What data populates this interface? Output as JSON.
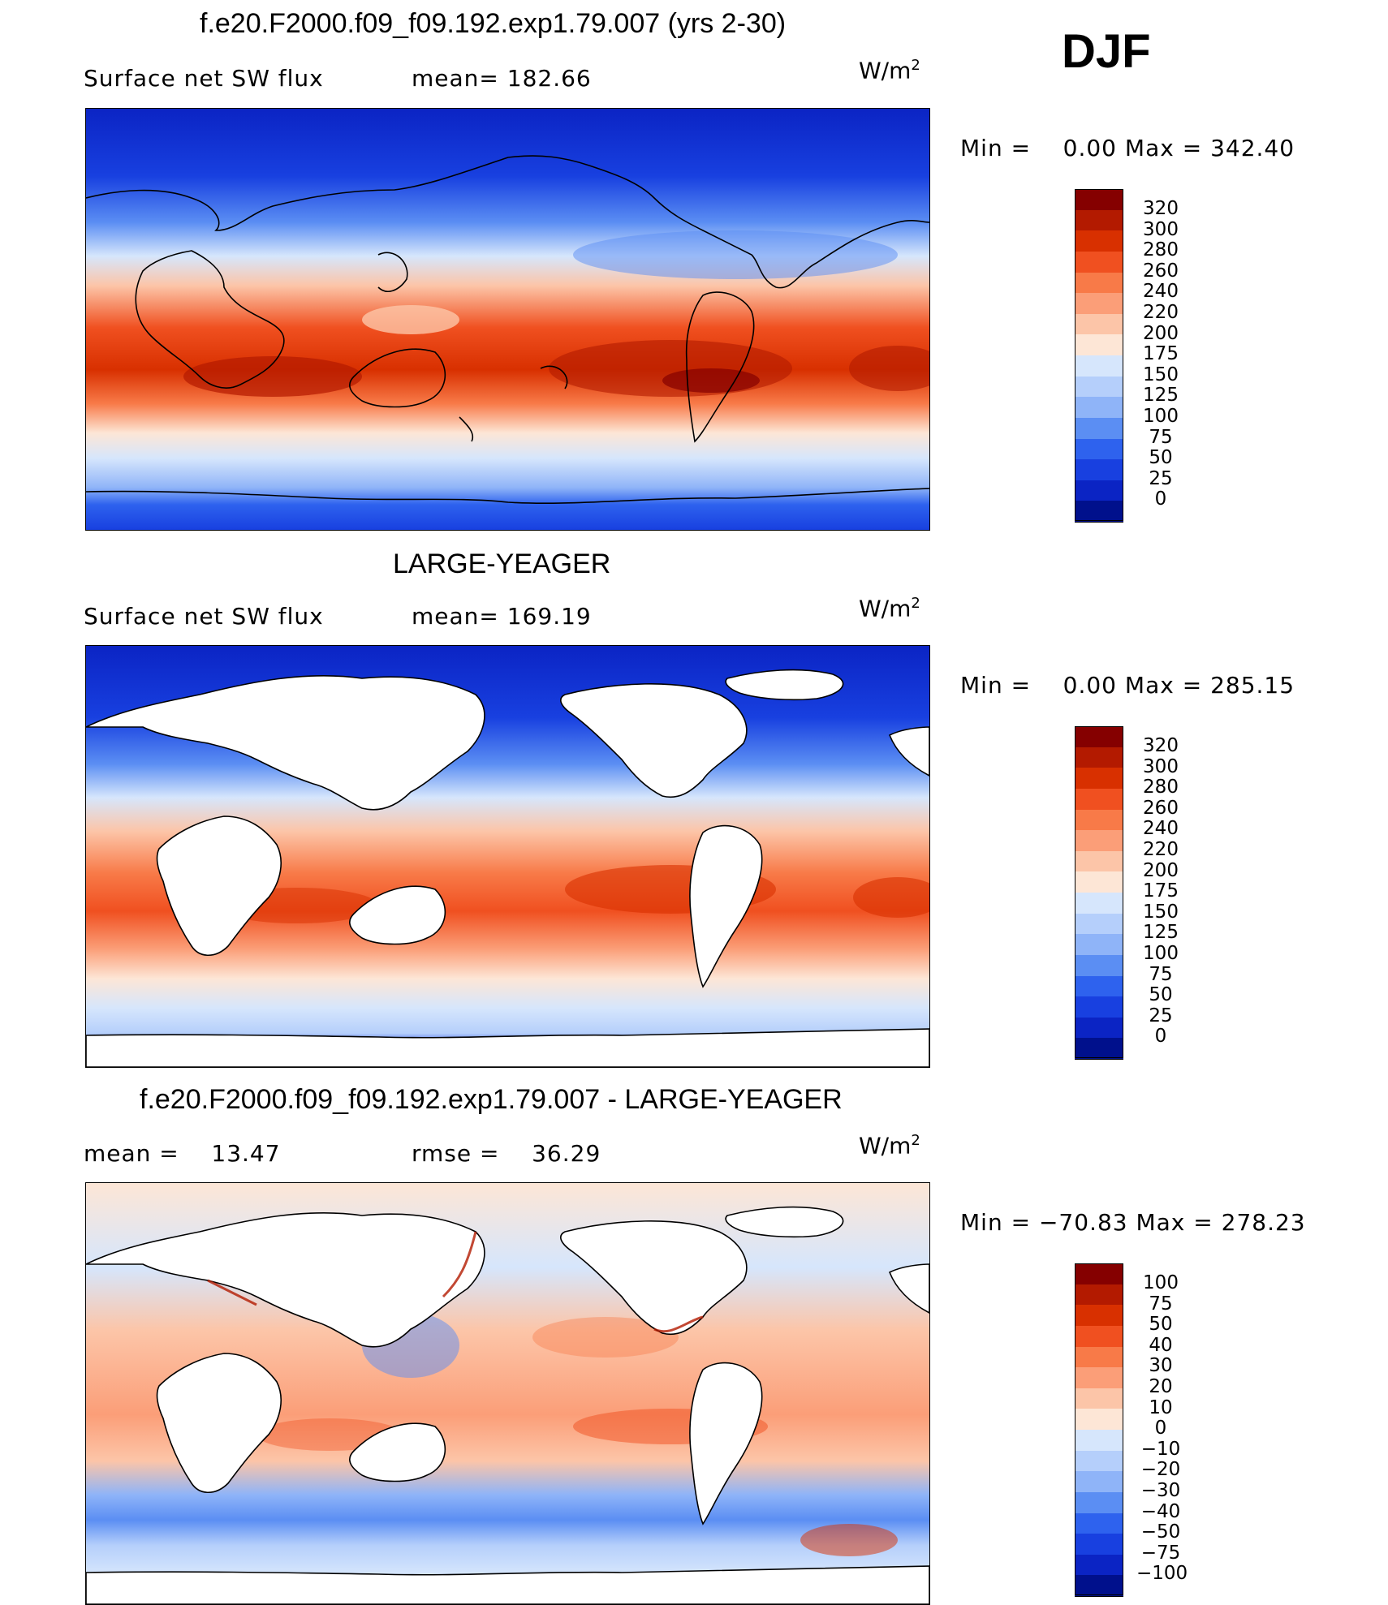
{
  "djf_label": "DJF",
  "units_base": "W/m",
  "units_exp": "2",
  "panels": [
    {
      "title": "f.e20.F2000.f09_f09.192.exp1.79.007 (yrs 2-30)",
      "left_label": "Surface net SW flux",
      "right_label": "mean= 182.66",
      "min_label": "Min =",
      "min_value": "0.00",
      "max_label": "Max =",
      "max_value": "342.40",
      "land_masked": false
    },
    {
      "title": "LARGE-YEAGER",
      "left_label": "Surface net SW flux",
      "right_label": "mean= 169.19",
      "min_label": "Min =",
      "min_value": "0.00",
      "max_label": "Max =",
      "max_value": "285.15",
      "land_masked": true
    },
    {
      "title": "f.e20.F2000.f09_f09.192.exp1.79.007 - LARGE-YEAGER",
      "left_label": "mean =",
      "left_value": "13.47",
      "right_label": "rmse =",
      "right_value": "36.29",
      "min_label": "Min =",
      "min_value": "−70.83",
      "max_label": "Max =",
      "max_value": "278.23",
      "land_masked": true
    }
  ],
  "colorbars": {
    "abs_levels": [
      "320",
      "300",
      "280",
      "260",
      "240",
      "220",
      "200",
      "175",
      "150",
      "125",
      "100",
      "75",
      "50",
      "25",
      "0"
    ],
    "abs_colors": [
      "#850000",
      "#b31a00",
      "#d83000",
      "#f05020",
      "#f87a48",
      "#fb9e78",
      "#fcc5a8",
      "#fde6d6",
      "#d6e6fc",
      "#b5cffb",
      "#8fb4f8",
      "#5b8ef3",
      "#2e62ee",
      "#1840e0",
      "#0b24c4",
      "#00108c"
    ],
    "diff_levels": [
      "100",
      "75",
      "50",
      "40",
      "30",
      "20",
      "10",
      "0",
      "−10",
      "−20",
      "−30",
      "−40",
      "−50",
      "−75",
      "−100"
    ],
    "diff_colors": [
      "#850000",
      "#b31a00",
      "#d83000",
      "#f05020",
      "#f87a48",
      "#fb9e78",
      "#fcc5a8",
      "#fde6d6",
      "#d6e6fc",
      "#b5cffb",
      "#8fb4f8",
      "#5b8ef3",
      "#2e62ee",
      "#1840e0",
      "#0b24c4",
      "#00108c"
    ]
  }
}
